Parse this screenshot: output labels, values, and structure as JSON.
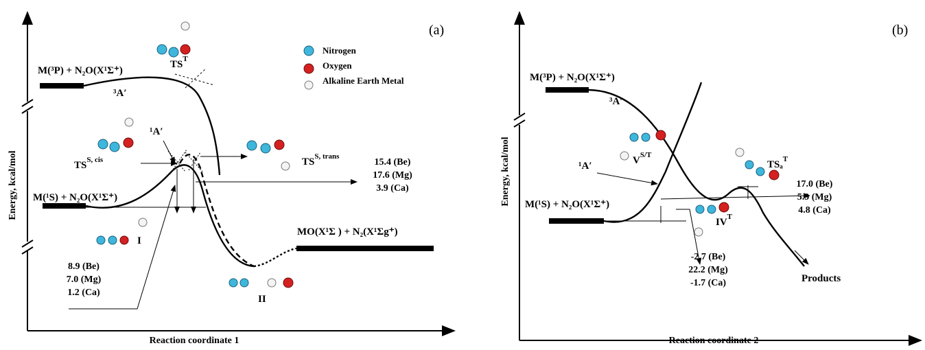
{
  "panels": [
    {
      "label": "(a)",
      "y_axis": "Energy, kcal/mol",
      "x_axis": "Reaction coordinate 1",
      "legend": [
        "Nitrogen",
        "Oxygen",
        "Alkaline Earth Metal"
      ],
      "labels": [
        {
          "text": "M(³P) + N₂O(X¹Σ⁺)"
        },
        {
          "text": "³A′"
        },
        {
          "text": "TS",
          "sup": "T"
        },
        {
          "text": "¹A′"
        },
        {
          "text": "TS",
          "sup": "S, cis"
        },
        {
          "text": "TS",
          "sup": "S, trans"
        },
        {
          "text": "M(¹S) + N₂O(X¹Σ⁺)"
        },
        {
          "text": "I"
        },
        {
          "text": "MO(X¹Σ ) + N₂(X¹Σg⁺)"
        },
        {
          "text": "II"
        }
      ],
      "energies": [
        [
          "15.4 (Be)",
          "17.6 (Mg)",
          "3.9 (Ca)"
        ],
        [
          "8.9 (Be)",
          "7.0 (Mg)",
          "1.2 (Ca)"
        ]
      ]
    },
    {
      "label": "(b)",
      "y_axis": "Energy, kcal/mol",
      "x_axis": "Reaction coordinate 2",
      "legend": [],
      "labels": [
        {
          "text": "M(³P) + N₂O(X¹Σ⁺)"
        },
        {
          "text": "³A′"
        },
        {
          "text": "V",
          "sup": "S/T"
        },
        {
          "text": "¹A′"
        },
        {
          "text": "TSₐ",
          "sup": "T"
        },
        {
          "text": "M(¹S) + N₂O(X¹Σ⁺)"
        },
        {
          "text": "IV",
          "sup": "T"
        },
        {
          "text": "Products"
        }
      ],
      "energies": [
        [
          "17.0 (Be)",
          "5.9 (Mg)",
          "4.8 (Ca)"
        ],
        [
          "-2.7 (Be)",
          "22.2 (Mg)",
          "-1.7 (Ca)"
        ]
      ]
    }
  ]
}
